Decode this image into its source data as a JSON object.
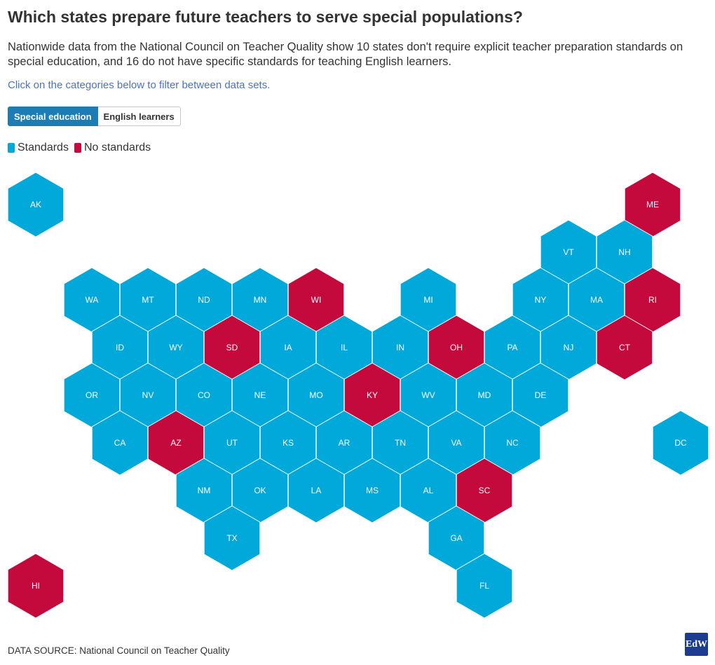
{
  "title": "Which states prepare future teachers to serve special populations?",
  "subtitle": "Nationwide data from the National Council on Teacher Quality show 10 states don't require explicit teacher preparation standards on special education, and 16 do not have specific standards for teaching English learners.",
  "hint": "Click on the categories below to filter between data sets.",
  "tabs": [
    {
      "label": "Special education",
      "active": true
    },
    {
      "label": "English learners",
      "active": false
    }
  ],
  "legend": [
    {
      "label": "Standards",
      "color": "#00a9d9"
    },
    {
      "label": "No standards",
      "color": "#c40a3c"
    }
  ],
  "map_data": {
    "type": "hex-tile-map",
    "hexes": [
      {
        "state": "AK",
        "col": 0,
        "row": 0,
        "status": "Standards"
      },
      {
        "state": "ME",
        "col": 11,
        "row": 0,
        "status": "No standards"
      },
      {
        "state": "VT",
        "col": 9.5,
        "row": 1,
        "status": "Standards"
      },
      {
        "state": "NH",
        "col": 10.5,
        "row": 1,
        "status": "Standards"
      },
      {
        "state": "WA",
        "col": 1,
        "row": 2,
        "status": "Standards"
      },
      {
        "state": "MT",
        "col": 2,
        "row": 2,
        "status": "Standards"
      },
      {
        "state": "ND",
        "col": 3,
        "row": 2,
        "status": "Standards"
      },
      {
        "state": "MN",
        "col": 4,
        "row": 2,
        "status": "Standards"
      },
      {
        "state": "WI",
        "col": 5,
        "row": 2,
        "status": "No standards"
      },
      {
        "state": "MI",
        "col": 7,
        "row": 2,
        "status": "Standards"
      },
      {
        "state": "NY",
        "col": 9,
        "row": 2,
        "status": "Standards"
      },
      {
        "state": "MA",
        "col": 10,
        "row": 2,
        "status": "Standards"
      },
      {
        "state": "RI",
        "col": 11,
        "row": 2,
        "status": "No standards"
      },
      {
        "state": "ID",
        "col": 1.5,
        "row": 3,
        "status": "Standards"
      },
      {
        "state": "WY",
        "col": 2.5,
        "row": 3,
        "status": "Standards"
      },
      {
        "state": "SD",
        "col": 3.5,
        "row": 3,
        "status": "No standards"
      },
      {
        "state": "IA",
        "col": 4.5,
        "row": 3,
        "status": "Standards"
      },
      {
        "state": "IL",
        "col": 5.5,
        "row": 3,
        "status": "Standards"
      },
      {
        "state": "IN",
        "col": 6.5,
        "row": 3,
        "status": "Standards"
      },
      {
        "state": "OH",
        "col": 7.5,
        "row": 3,
        "status": "No standards"
      },
      {
        "state": "PA",
        "col": 8.5,
        "row": 3,
        "status": "Standards"
      },
      {
        "state": "NJ",
        "col": 9.5,
        "row": 3,
        "status": "Standards"
      },
      {
        "state": "CT",
        "col": 10.5,
        "row": 3,
        "status": "No standards"
      },
      {
        "state": "OR",
        "col": 1,
        "row": 4,
        "status": "Standards"
      },
      {
        "state": "NV",
        "col": 2,
        "row": 4,
        "status": "Standards"
      },
      {
        "state": "CO",
        "col": 3,
        "row": 4,
        "status": "Standards"
      },
      {
        "state": "NE",
        "col": 4,
        "row": 4,
        "status": "Standards"
      },
      {
        "state": "MO",
        "col": 5,
        "row": 4,
        "status": "Standards"
      },
      {
        "state": "KY",
        "col": 6,
        "row": 4,
        "status": "No standards"
      },
      {
        "state": "WV",
        "col": 7,
        "row": 4,
        "status": "Standards"
      },
      {
        "state": "MD",
        "col": 8,
        "row": 4,
        "status": "Standards"
      },
      {
        "state": "DE",
        "col": 9,
        "row": 4,
        "status": "Standards"
      },
      {
        "state": "CA",
        "col": 1.5,
        "row": 5,
        "status": "Standards"
      },
      {
        "state": "AZ",
        "col": 2.5,
        "row": 5,
        "status": "No standards"
      },
      {
        "state": "UT",
        "col": 3.5,
        "row": 5,
        "status": "Standards"
      },
      {
        "state": "KS",
        "col": 4.5,
        "row": 5,
        "status": "Standards"
      },
      {
        "state": "AR",
        "col": 5.5,
        "row": 5,
        "status": "Standards"
      },
      {
        "state": "TN",
        "col": 6.5,
        "row": 5,
        "status": "Standards"
      },
      {
        "state": "VA",
        "col": 7.5,
        "row": 5,
        "status": "Standards"
      },
      {
        "state": "NC",
        "col": 8.5,
        "row": 5,
        "status": "Standards"
      },
      {
        "state": "DC",
        "col": 11.5,
        "row": 5,
        "status": "Standards"
      },
      {
        "state": "NM",
        "col": 3,
        "row": 6,
        "status": "Standards"
      },
      {
        "state": "OK",
        "col": 4,
        "row": 6,
        "status": "Standards"
      },
      {
        "state": "LA",
        "col": 5,
        "row": 6,
        "status": "Standards"
      },
      {
        "state": "MS",
        "col": 6,
        "row": 6,
        "status": "Standards"
      },
      {
        "state": "AL",
        "col": 7,
        "row": 6,
        "status": "Standards"
      },
      {
        "state": "SC",
        "col": 8,
        "row": 6,
        "status": "No standards"
      },
      {
        "state": "TX",
        "col": 3.5,
        "row": 7,
        "status": "Standards"
      },
      {
        "state": "GA",
        "col": 7.5,
        "row": 7,
        "status": "Standards"
      },
      {
        "state": "HI",
        "col": 0,
        "row": 8,
        "status": "No standards"
      },
      {
        "state": "FL",
        "col": 8,
        "row": 8,
        "status": "Standards"
      }
    ]
  },
  "source": "DATA SOURCE: National Council on Teacher Quality",
  "logo_text": "EdW"
}
